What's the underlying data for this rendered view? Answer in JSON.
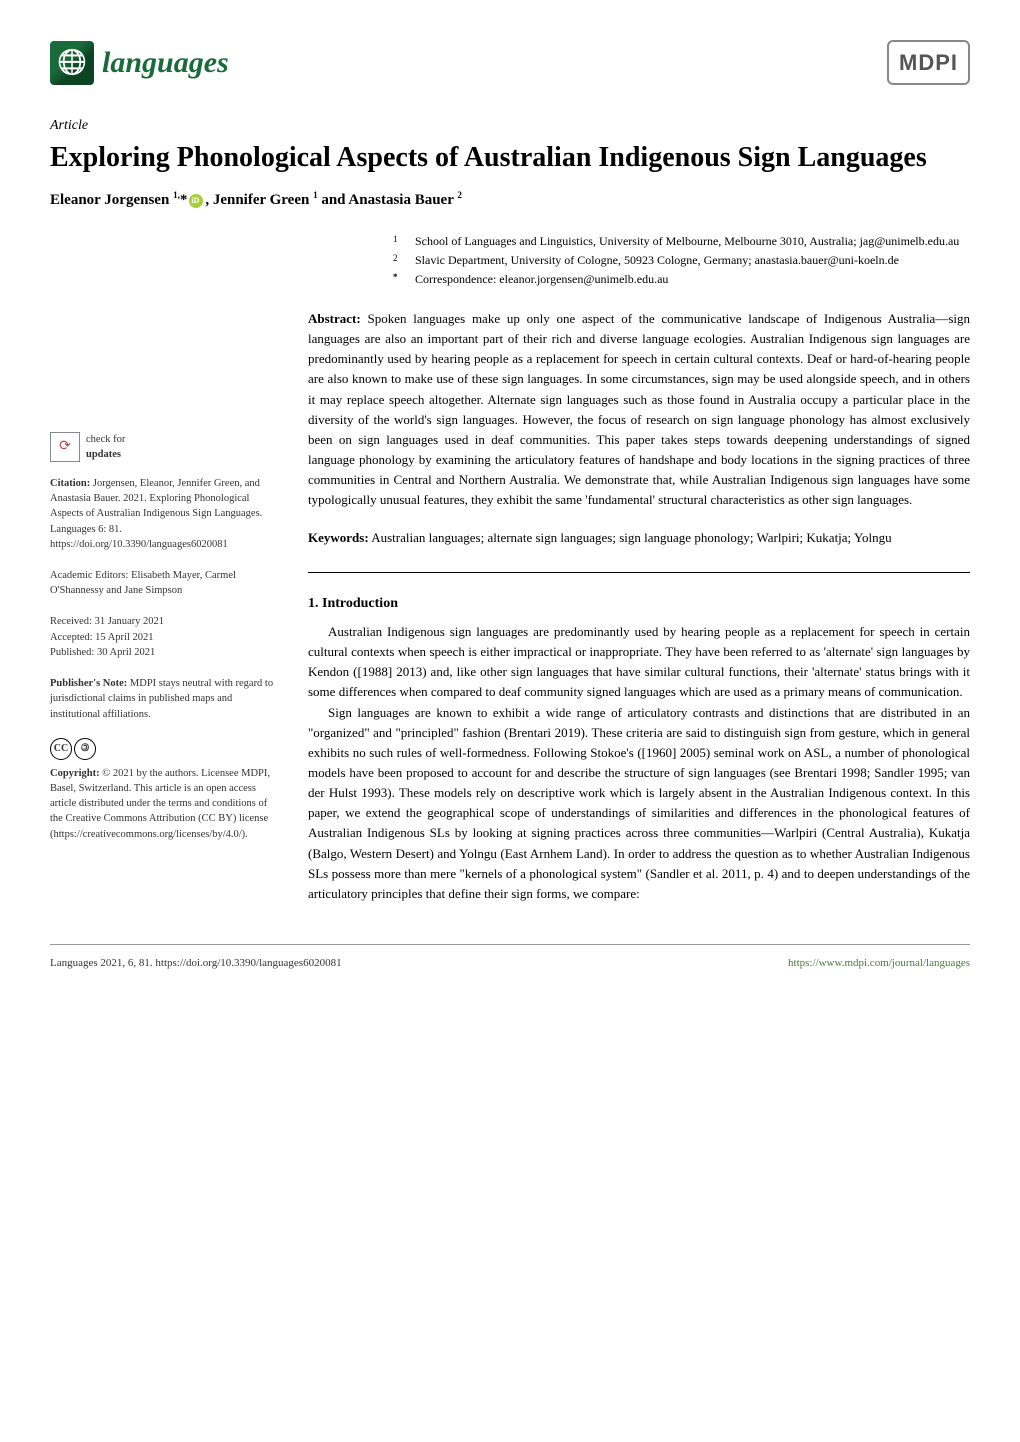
{
  "journal": {
    "name": "languages",
    "publisher": "MDPI"
  },
  "article": {
    "type": "Article",
    "title": "Exploring Phonological Aspects of Australian Indigenous Sign Languages",
    "authors_html": "Eleanor Jorgensen <sup>1,</sup>* , Jennifer Green <sup>1</sup> and Anastasia Bauer <sup>2</sup>"
  },
  "affiliations": {
    "a1_num": "1",
    "a1_text": "School of Languages and Linguistics, University of Melbourne, Melbourne 3010, Australia; jag@unimelb.edu.au",
    "a2_num": "2",
    "a2_text": "Slavic Department, University of Cologne, 50923 Cologne, Germany; anastasia.bauer@uni-koeln.de",
    "corr_sym": "*",
    "corr_text": "Correspondence: eleanor.jorgensen@unimelb.edu.au"
  },
  "abstract": {
    "label": "Abstract:",
    "text": "Spoken languages make up only one aspect of the communicative landscape of Indigenous Australia—sign languages are also an important part of their rich and diverse language ecologies. Australian Indigenous sign languages are predominantly used by hearing people as a replacement for speech in certain cultural contexts. Deaf or hard-of-hearing people are also known to make use of these sign languages. In some circumstances, sign may be used alongside speech, and in others it may replace speech altogether. Alternate sign languages such as those found in Australia occupy a particular place in the diversity of the world's sign languages. However, the focus of research on sign language phonology has almost exclusively been on sign languages used in deaf communities. This paper takes steps towards deepening understandings of signed language phonology by examining the articulatory features of handshape and body locations in the signing practices of three communities in Central and Northern Australia. We demonstrate that, while Australian Indigenous sign languages have some typologically unusual features, they exhibit the same 'fundamental' structural characteristics as other sign languages."
  },
  "keywords": {
    "label": "Keywords:",
    "text": "Australian languages; alternate sign languages; sign language phonology; Warlpiri; Kukatja; Yolngu"
  },
  "section1": {
    "heading": "1. Introduction",
    "p1": "Australian Indigenous sign languages are predominantly used by hearing people as a replacement for speech in certain cultural contexts when speech is either impractical or inappropriate. They have been referred to as 'alternate' sign languages by Kendon ([1988] 2013) and, like other sign languages that have similar cultural functions, their 'alternate' status brings with it some differences when compared to deaf community signed languages which are used as a primary means of communication.",
    "p2": "Sign languages are known to exhibit a wide range of articulatory contrasts and distinctions that are distributed in an \"organized\" and \"principled\" fashion (Brentari 2019). These criteria are said to distinguish sign from gesture, which in general exhibits no such rules of well-formedness. Following Stokoe's ([1960] 2005) seminal work on ASL, a number of phonological models have been proposed to account for and describe the structure of sign languages (see Brentari 1998; Sandler 1995; van der Hulst 1993). These models rely on descriptive work which is largely absent in the Australian Indigenous context. In this paper, we extend the geographical scope of understandings of similarities and differences in the phonological features of Australian Indigenous SLs by looking at signing practices across three communities—Warlpiri (Central Australia), Kukatja (Balgo, Western Desert) and Yolngu (East Arnhem Land). In order to address the question as to whether Australian Indigenous SLs possess more than mere \"kernels of a phonological system\" (Sandler et al. 2011, p. 4) and to deepen understandings of the articulatory principles that define their sign forms, we compare:"
  },
  "sidebar": {
    "check_updates": "check for updates",
    "citation_label": "Citation:",
    "citation_text": "Jorgensen, Eleanor, Jennifer Green, and Anastasia Bauer. 2021. Exploring Phonological Aspects of Australian Indigenous Sign Languages. Languages 6: 81. https://doi.org/10.3390/languages6020081",
    "editors_label": "Academic Editors:",
    "editors_text": "Elisabeth Mayer, Carmel O'Shannessy and Jane Simpson",
    "received": "Received: 31 January 2021",
    "accepted": "Accepted: 15 April 2021",
    "published": "Published: 30 April 2021",
    "pubnote_label": "Publisher's Note:",
    "pubnote_text": "MDPI stays neutral with regard to jurisdictional claims in published maps and institutional affiliations.",
    "copyright_label": "Copyright:",
    "copyright_text": "© 2021 by the authors. Licensee MDPI, Basel, Switzerland. This article is an open access article distributed under the terms and conditions of the Creative Commons Attribution (CC BY) license (https://creativecommons.org/licenses/by/4.0/)."
  },
  "footer": {
    "left": "Languages 2021, 6, 81. https://doi.org/10.3390/languages6020081",
    "right": "https://www.mdpi.com/journal/languages"
  },
  "colors": {
    "brand_green": "#1a6b3a",
    "ref_green": "#4a7a3a"
  }
}
